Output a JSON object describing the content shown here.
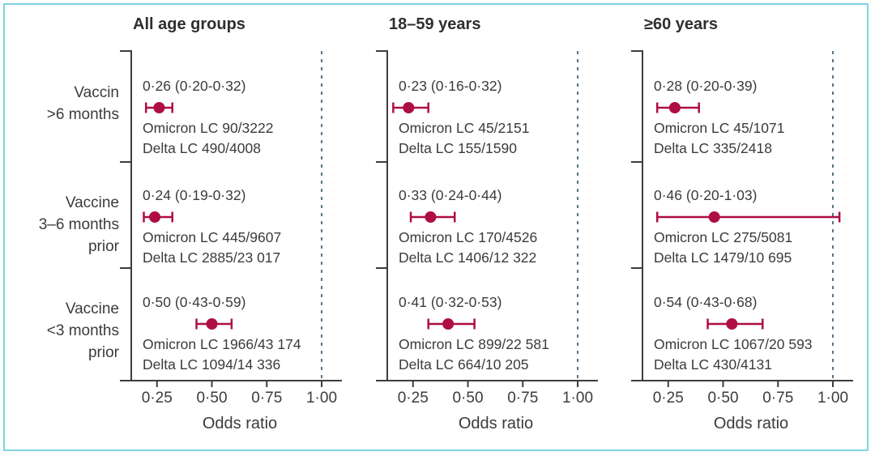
{
  "colors": {
    "marker": "#ae0d45",
    "axis": "#3d3d3d",
    "text": "#3b3b3b",
    "reference": "#52758a",
    "border": "#7fd3e4",
    "background": "#ffffff"
  },
  "chart_data": {
    "type": "forest",
    "xlabel": "Odds ratio",
    "x_ticks": [
      0.25,
      0.5,
      0.75,
      1.0
    ],
    "x_tick_labels": [
      "0·25",
      "0·50",
      "0·75",
      "1·00"
    ],
    "reference_line": 1.0,
    "x_range": [
      0.13,
      1.09
    ],
    "grid": false,
    "row_labels": [
      {
        "lines": [
          "Vaccin",
          ">6 months"
        ]
      },
      {
        "lines": [
          "Vaccine",
          "3–6 months",
          "prior"
        ]
      },
      {
        "lines": [
          "Vaccine",
          "<3 months",
          "prior"
        ]
      }
    ],
    "panels": [
      {
        "title": "All age groups",
        "rows": [
          {
            "or": 0.26,
            "ci_low": 0.2,
            "ci_high": 0.32,
            "label": "0·26 (0·20-0·32)",
            "omicron": "Omicron LC 90/3222",
            "delta": "Delta LC 490/4008"
          },
          {
            "or": 0.24,
            "ci_low": 0.19,
            "ci_high": 0.32,
            "label": "0·24 (0·19-0·32)",
            "omicron": "Omicron LC 445/9607",
            "delta": "Delta LC 2885/23 017"
          },
          {
            "or": 0.5,
            "ci_low": 0.43,
            "ci_high": 0.59,
            "label": "0·50 (0·43-0·59)",
            "omicron": "Omicron LC 1966/43 174",
            "delta": "Delta LC 1094/14 336"
          }
        ]
      },
      {
        "title": "18–59 years",
        "rows": [
          {
            "or": 0.23,
            "ci_low": 0.16,
            "ci_high": 0.32,
            "label": "0·23 (0·16-0·32)",
            "omicron": "Omicron LC 45/2151",
            "delta": "Delta LC 155/1590"
          },
          {
            "or": 0.33,
            "ci_low": 0.24,
            "ci_high": 0.44,
            "label": "0·33 (0·24-0·44)",
            "omicron": "Omicron LC 170/4526",
            "delta": "Delta LC 1406/12 322"
          },
          {
            "or": 0.41,
            "ci_low": 0.32,
            "ci_high": 0.53,
            "label": "0·41 (0·32-0·53)",
            "omicron": "Omicron LC 899/22 581",
            "delta": "Delta LC 664/10 205"
          }
        ]
      },
      {
        "title": "≥60 years",
        "rows": [
          {
            "or": 0.28,
            "ci_low": 0.2,
            "ci_high": 0.39,
            "label": "0·28 (0·20-0·39)",
            "omicron": "Omicron LC 45/1071",
            "delta": "Delta LC 335/2418"
          },
          {
            "or": 0.46,
            "ci_low": 0.2,
            "ci_high": 1.03,
            "label": "0·46 (0·20-1·03)",
            "omicron": "Omicron LC 275/5081",
            "delta": "Delta LC 1479/10 695"
          },
          {
            "or": 0.54,
            "ci_low": 0.43,
            "ci_high": 0.68,
            "label": "0·54 (0·43-0·68)",
            "omicron": "Omicron LC 1067/20 593",
            "delta": "Delta LC 430/4131"
          }
        ]
      }
    ]
  }
}
